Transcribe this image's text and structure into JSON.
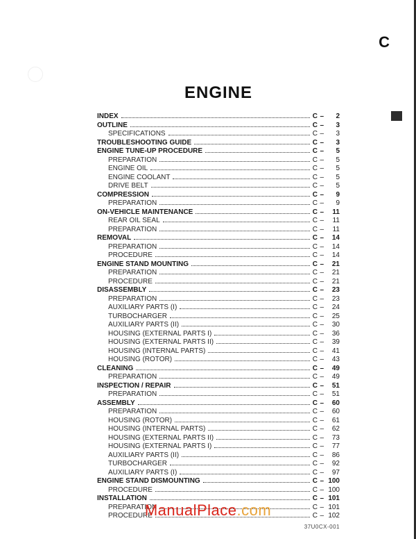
{
  "section_letter": "C",
  "title": "ENGINE",
  "page_prefix": "C",
  "doc_code": "37U0CX-001",
  "watermark": {
    "text": "ManualPlace.com",
    "color_a": "#d9261c",
    "color_b": "#e8a33a"
  },
  "toc": [
    {
      "label": "INDEX",
      "page": "2",
      "level": 0
    },
    {
      "label": "OUTLINE",
      "page": "3",
      "level": 0
    },
    {
      "label": "SPECIFICATIONS",
      "page": "3",
      "level": 1
    },
    {
      "label": "TROUBLESHOOTING GUIDE",
      "page": "3",
      "level": 0
    },
    {
      "label": "ENGINE TUNE-UP PROCEDURE",
      "page": "5",
      "level": 0
    },
    {
      "label": "PREPARATION",
      "page": "5",
      "level": 1
    },
    {
      "label": "ENGINE OIL",
      "page": "5",
      "level": 1
    },
    {
      "label": "ENGINE COOLANT",
      "page": "5",
      "level": 1
    },
    {
      "label": "DRIVE BELT",
      "page": "5",
      "level": 1
    },
    {
      "label": "COMPRESSION",
      "page": "9",
      "level": 0
    },
    {
      "label": "PREPARATION",
      "page": "9",
      "level": 1
    },
    {
      "label": "ON-VEHICLE MAINTENANCE",
      "page": "11",
      "level": 0
    },
    {
      "label": "REAR OIL SEAL",
      "page": "11",
      "level": 1
    },
    {
      "label": "PREPARATION",
      "page": "11",
      "level": 1
    },
    {
      "label": "REMOVAL",
      "page": "14",
      "level": 0
    },
    {
      "label": "PREPARATION",
      "page": "14",
      "level": 1
    },
    {
      "label": "PROCEDURE",
      "page": "14",
      "level": 1
    },
    {
      "label": "ENGINE STAND MOUNTING",
      "page": "21",
      "level": 0
    },
    {
      "label": "PREPARATION",
      "page": "21",
      "level": 1
    },
    {
      "label": "PROCEDURE",
      "page": "21",
      "level": 1
    },
    {
      "label": "DISASSEMBLY",
      "page": "23",
      "level": 0
    },
    {
      "label": "PREPARATION",
      "page": "23",
      "level": 1
    },
    {
      "label": "AUXILIARY PARTS (I)",
      "page": "24",
      "level": 1
    },
    {
      "label": "TURBOCHARGER",
      "page": "25",
      "level": 1
    },
    {
      "label": "AUXILIARY PARTS (II)",
      "page": "30",
      "level": 1
    },
    {
      "label": "HOUSING (EXTERNAL PARTS I)",
      "page": "36",
      "level": 1
    },
    {
      "label": "HOUSING (EXTERNAL PARTS II)",
      "page": "39",
      "level": 1
    },
    {
      "label": "HOUSING (INTERNAL PARTS)",
      "page": "41",
      "level": 1
    },
    {
      "label": "HOUSING (ROTOR)",
      "page": "43",
      "level": 1
    },
    {
      "label": "CLEANING",
      "page": "49",
      "level": 0
    },
    {
      "label": "PREPARATION",
      "page": "49",
      "level": 1
    },
    {
      "label": "INSPECTION / REPAIR",
      "page": "51",
      "level": 0
    },
    {
      "label": "PREPARATION",
      "page": "51",
      "level": 1
    },
    {
      "label": "ASSEMBLY",
      "page": "60",
      "level": 0
    },
    {
      "label": "PREPARATION",
      "page": "60",
      "level": 1
    },
    {
      "label": "HOUSING (ROTOR)",
      "page": "61",
      "level": 1
    },
    {
      "label": "HOUSING (INTERNAL PARTS)",
      "page": "62",
      "level": 1
    },
    {
      "label": "HOUSING (EXTERNAL PARTS II)",
      "page": "73",
      "level": 1
    },
    {
      "label": "HOUSING (EXTERNAL PARTS I)",
      "page": "77",
      "level": 1
    },
    {
      "label": "AUXILIARY PARTS (II)",
      "page": "86",
      "level": 1
    },
    {
      "label": "TURBOCHARGER",
      "page": "92",
      "level": 1
    },
    {
      "label": "AUXILIARY PARTS (I)",
      "page": "97",
      "level": 1
    },
    {
      "label": "ENGINE STAND DISMOUNTING",
      "page": "100",
      "level": 0
    },
    {
      "label": "PROCEDURE",
      "page": "100",
      "level": 1
    },
    {
      "label": "INSTALLATION",
      "page": "101",
      "level": 0
    },
    {
      "label": "PREPARATION",
      "page": "101",
      "level": 1
    },
    {
      "label": "PROCEDURE",
      "page": "102",
      "level": 1
    }
  ]
}
